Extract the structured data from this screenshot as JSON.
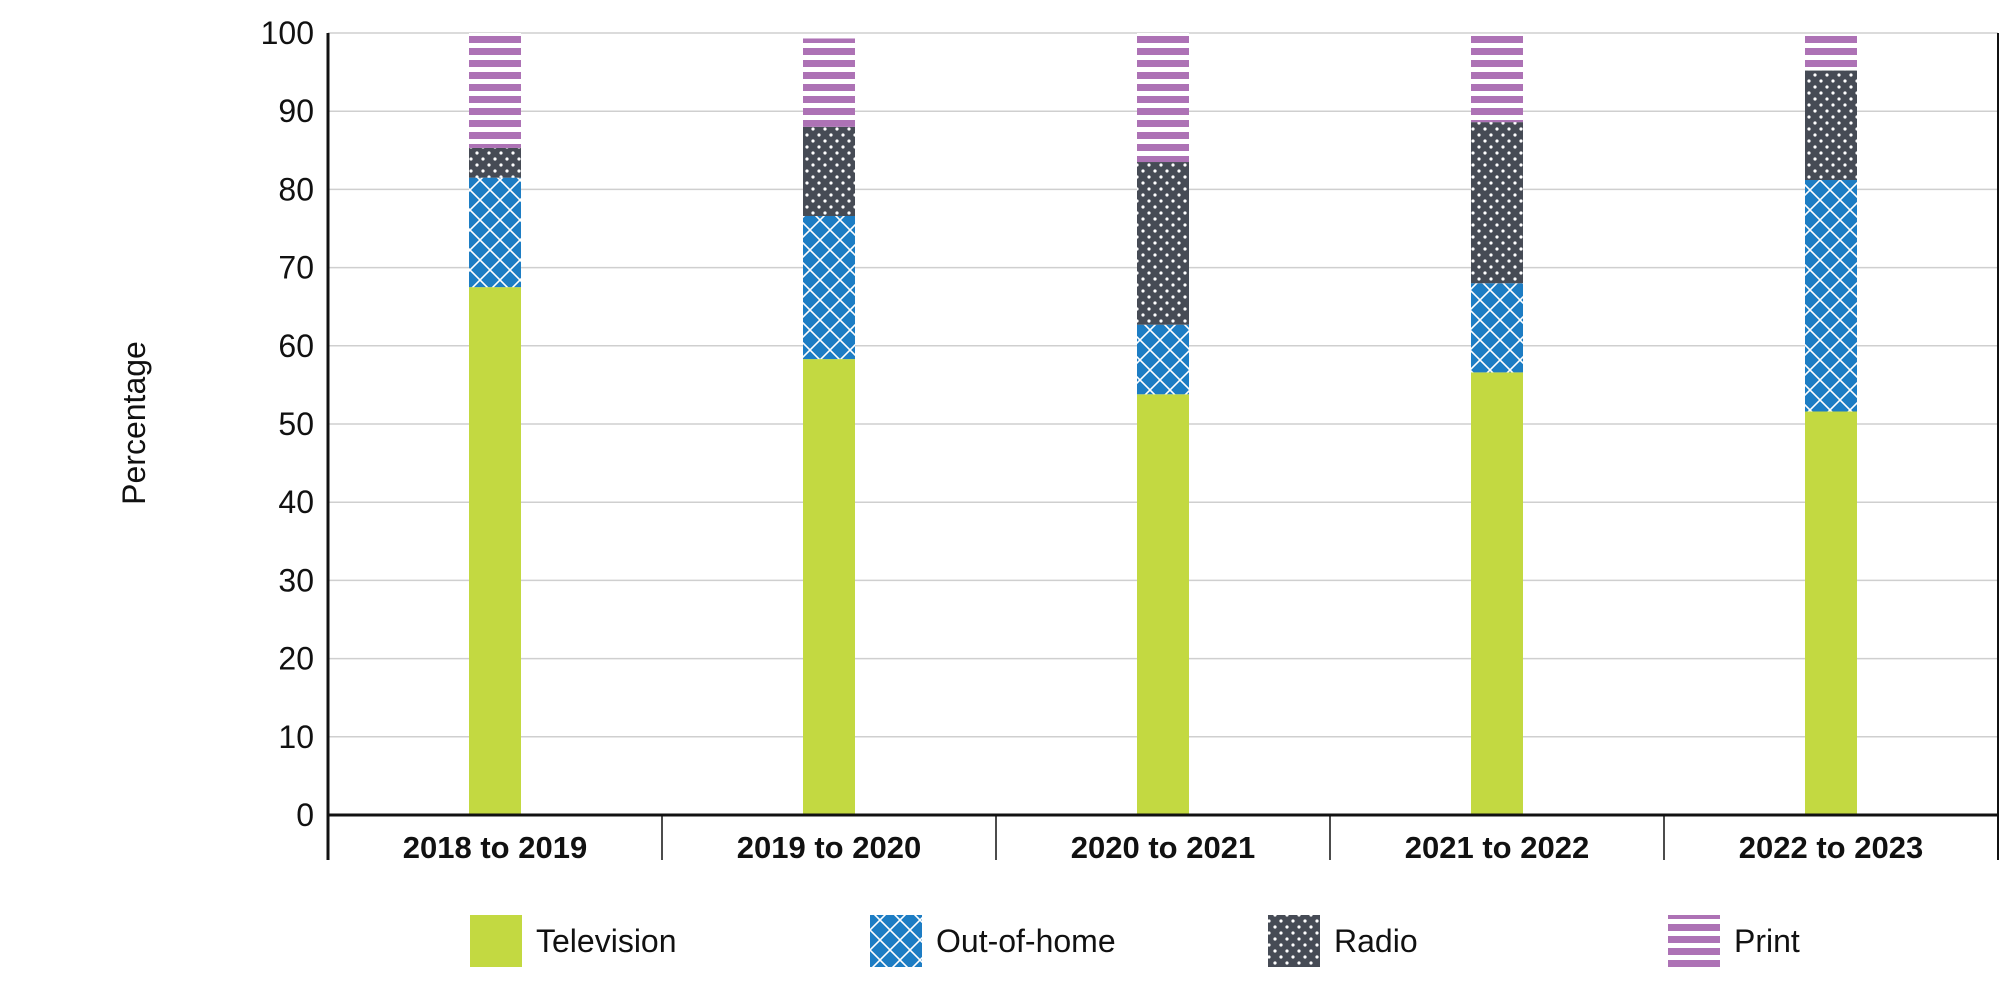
{
  "chart_data": {
    "type": "bar",
    "stacked": true,
    "title": "",
    "xlabel": "",
    "ylabel": "Percentage",
    "ylim": [
      0,
      100
    ],
    "yticks": [
      0,
      10,
      20,
      30,
      40,
      50,
      60,
      70,
      80,
      90,
      100
    ],
    "grid": true,
    "legend_position": "bottom",
    "categories": [
      "2018 to 2019",
      "2019 to 2020",
      "2020 to 2021",
      "2021 to 2022",
      "2022 to 2023"
    ],
    "series": [
      {
        "name": "Television",
        "color": "#c3d941",
        "pattern": "solid",
        "values": [
          67.5,
          58.3,
          53.8,
          56.6,
          51.6
        ]
      },
      {
        "name": "Out-of-home",
        "color": "#1d7dc4",
        "pattern": "crosshatch",
        "values": [
          14.0,
          18.3,
          8.9,
          11.4,
          29.6
        ]
      },
      {
        "name": "Radio",
        "color": "#464b55",
        "pattern": "dots",
        "values": [
          3.8,
          11.4,
          20.8,
          20.6,
          14.0
        ]
      },
      {
        "name": "Print",
        "color": "#ad72b5",
        "pattern": "stripes",
        "values": [
          14.7,
          11.3,
          16.5,
          11.3,
          4.6
        ]
      }
    ]
  }
}
